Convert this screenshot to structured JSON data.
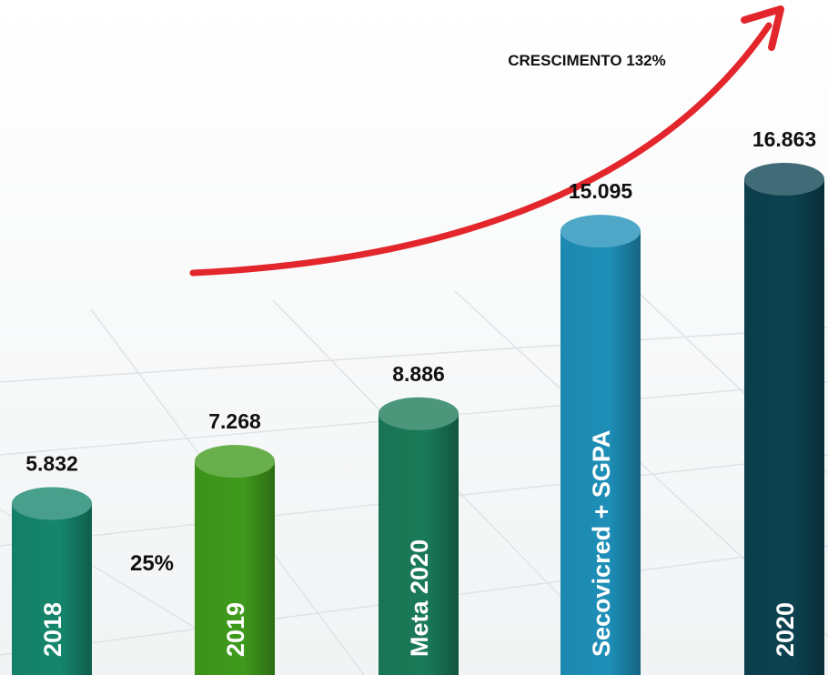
{
  "chart_data": {
    "type": "bar",
    "categories": [
      "2018",
      "2019",
      "Meta 2020",
      "Secovicred + SGPA",
      "2020"
    ],
    "values": [
      5832,
      7268,
      8886,
      15095,
      16863
    ],
    "value_labels": [
      "5.832",
      "7.268",
      "8.886",
      "15.095",
      "16.863"
    ],
    "colors": [
      "#15866c",
      "#3f9a1c",
      "#1a7a58",
      "#1e8fb8",
      "#0c4250"
    ],
    "annotations": [
      "CRESCIMENTO 132%",
      "25%"
    ]
  }
}
